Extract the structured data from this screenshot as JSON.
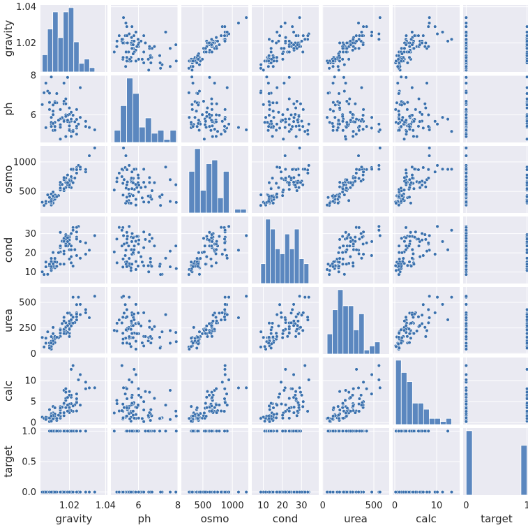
{
  "chart_data": {
    "type": "scatter",
    "kind": "pairplot",
    "grid": true,
    "colors": {
      "panel_bg": "#eaeaf2",
      "grid": "#ffffff",
      "marker": "#3a70ad",
      "hist": "#5b87bf",
      "marker_edge": "#ffffff"
    },
    "variables": [
      "gravity",
      "ph",
      "osmo",
      "cond",
      "urea",
      "calc",
      "target"
    ],
    "tick_labels": {
      "x": {
        "gravity": [
          "1.02",
          "1.04"
        ],
        "ph": [
          "6",
          "8"
        ],
        "osmo": [
          "500",
          "1000"
        ],
        "cond": [
          "10",
          "20",
          "30"
        ],
        "urea": [
          "0",
          "500"
        ],
        "calc": [
          "0",
          "10"
        ],
        "target": [
          "0",
          "1"
        ]
      },
      "y": {
        "gravity": [
          "1.02",
          "1.04"
        ],
        "ph": [
          "6",
          "8"
        ],
        "osmo": [
          "500",
          "1000"
        ],
        "cond": [
          "10",
          "20",
          "30"
        ],
        "urea": [
          "0",
          "250",
          "500"
        ],
        "calc": [
          "0",
          "5",
          "10"
        ],
        "target": [
          "0.0",
          "0.5",
          "1.0"
        ]
      }
    },
    "ticks": {
      "gravity": [
        1.02,
        1.04
      ],
      "ph": [
        6,
        8
      ],
      "osmo": [
        500,
        1000
      ],
      "cond": [
        10,
        20,
        30
      ],
      "urea": [
        0,
        500
      ],
      "calc": [
        0,
        10
      ],
      "target": [
        0,
        1
      ]
    },
    "yticks": {
      "gravity": [
        1.02,
        1.04
      ],
      "ph": [
        6,
        8
      ],
      "osmo": [
        500,
        1000
      ],
      "cond": [
        10,
        20,
        30
      ],
      "urea": [
        0,
        250,
        500
      ],
      "calc": [
        0,
        5,
        10
      ],
      "target": [
        0.0,
        0.5,
        1.0
      ]
    },
    "ranges": {
      "gravity": [
        1.004,
        1.041
      ],
      "ph": [
        4.6,
        8.0
      ],
      "osmo": [
        135,
        1270
      ],
      "cond": [
        4,
        39
      ],
      "urea": [
        -5,
        650
      ],
      "calc": [
        -0.5,
        15.5
      ],
      "target": [
        -0.05,
        1.05
      ]
    },
    "sample_data": {
      "gravity": [
        1.021,
        1.017,
        1.008,
        1.011,
        1.005,
        1.02,
        1.012,
        1.029,
        1.015,
        1.021,
        1.011,
        1.025,
        1.006,
        1.007,
        1.011,
        1.018,
        1.009,
        1.024,
        1.024,
        1.021,
        1.024,
        1.026,
        1.013,
        1.01,
        1.011,
        1.022,
        1.011,
        1.031,
        1.02,
        1.021,
        1.022,
        1.016,
        1.015,
        1.007,
        1.02,
        1.034,
        1.017,
        1.019,
        1.017,
        1.012,
        1.009,
        1.015,
        1.01,
        1.02,
        1.023,
        1.012,
        1.022,
        1.018,
        1.01,
        1.01,
        1.015,
        1.02,
        1.029,
        1.018,
        1.012,
        1.02,
        1.02,
        1.01,
        1.017,
        1.018,
        1.019,
        1.009,
        1.015,
        1.012,
        1.011,
        1.019,
        1.024,
        1.018,
        1.015,
        1.021,
        1.011,
        1.019,
        1.014,
        1.01,
        1.013,
        1.026,
        1.017,
        1.024
      ],
      "ph": [
        4.91,
        5.74,
        7.2,
        5.51,
        6.52,
        5.27,
        5.62,
        5.67,
        5.41,
        6.13,
        6.19,
        5.53,
        7.12,
        5.35,
        5.21,
        4.9,
        6.63,
        6.27,
        5.02,
        5.68,
        5.33,
        5.87,
        6.61,
        5.87,
        6.01,
        5.21,
        5.53,
        5.36,
        5.44,
        5.16,
        5.16,
        5.86,
        6.27,
        7.61,
        5.21,
        5.24,
        7.61,
        7.9,
        6.69,
        5.22,
        6.27,
        5.5,
        5.53,
        5.62,
        5.65,
        6.67,
        5.98,
        6.0,
        5.62,
        7.92,
        5.79,
        6.35,
        5.41,
        6.81,
        6.61,
        5.64,
        6.02,
        5.87,
        6.56,
        6.56,
        5.98,
        7.1,
        4.77,
        5.41,
        6.5,
        5.66,
        5.77,
        5.92,
        5.37,
        5.78,
        5.56,
        5.73,
        5.73,
        5.41,
        7.08,
        7.38,
        5.67,
        5.42
      ],
      "osmo": [
        725,
        721,
        442,
        345,
        317,
        700,
        445,
        830,
        612,
        564,
        391,
        940,
        263,
        302,
        434,
        664,
        394,
        876,
        810,
        674,
        904,
        877,
        426,
        269,
        491,
        864,
        303,
        1104,
        660,
        750,
        876,
        618,
        654,
        331,
        637,
        1236,
        699,
        613,
        513,
        438,
        321,
        537,
        457,
        696,
        727,
        368,
        648,
        727,
        301,
        314,
        534,
        577,
        871,
        648,
        402,
        672,
        608,
        366,
        734,
        651,
        778,
        398,
        524,
        403,
        422,
        657,
        878,
        566,
        556,
        874,
        422,
        646,
        429,
        333,
        412,
        912,
        546,
        868
      ],
      "cond": [
        14.8,
        19.5,
        8.8,
        14.5,
        10.1,
        24.6,
        12.2,
        19.3,
        30.7,
        18.0,
        15.2,
        33.8,
        8.7,
        15.2,
        12.6,
        27.2,
        13.4,
        30.9,
        33.3,
        30.1,
        18.6,
        25.9,
        15.1,
        11.3,
        20.2,
        33.2,
        13.4,
        21.4,
        28.7,
        23.6,
        31.8,
        26.1,
        22.7,
        12.7,
        16.8,
        29.0,
        20.9,
        23.6,
        27.6,
        16.8,
        13.3,
        23.6,
        17.1,
        21.6,
        21.7,
        13.0,
        13.1,
        24.6,
        10.8,
        11.8,
        23.6,
        27.0,
        25.2,
        23.6,
        17.1,
        28.2,
        26.7,
        15.5,
        26.0,
        29.5,
        28.6,
        14.1,
        20.5,
        15.3,
        13.3,
        25.9,
        28.2,
        28.6,
        14.1,
        21.6,
        14.3,
        27.9,
        20.1,
        12.8,
        13.0,
        17.2,
        14.1,
        27.2
      ],
      "urea": [
        296,
        354,
        212,
        255,
        157,
        395,
        155,
        398,
        225,
        270,
        104,
        550,
        64,
        150,
        101,
        220,
        103,
        398,
        328,
        375,
        478,
        480,
        162,
        43,
        194,
        355,
        150,
        350,
        246,
        299,
        550,
        293,
        167,
        101,
        198,
        560,
        224,
        206,
        236,
        141,
        74,
        240,
        165,
        236,
        302,
        147,
        297,
        300,
        68,
        116,
        200,
        166,
        429,
        263,
        166,
        317,
        292,
        120,
        318,
        256,
        395,
        53,
        226,
        107,
        123,
        273,
        386,
        194,
        232,
        330,
        95,
        273,
        155,
        102,
        159,
        380,
        196,
        359
      ],
      "calc": [
        4.49,
        4.41,
        1.11,
        2.28,
        1.27,
        3.56,
        1.21,
        9.62,
        3.78,
        6.03,
        0.94,
        10.18,
        0.98,
        1.23,
        0.84,
        5.28,
        3.06,
        4.97,
        2.74,
        6.52,
        6.8,
        11.42,
        0.49,
        0.96,
        1.04,
        2.67,
        3.82,
        8.26,
        3.04,
        2.82,
        13.58,
        3.65,
        2.98,
        0.71,
        4.38,
        8.28,
        7.67,
        2.71,
        1.62,
        1.11,
        0.21,
        3.41,
        2.13,
        2.65,
        4.21,
        1.6,
        3.94,
        8.06,
        0.32,
        1.53,
        1.02,
        7.39,
        8.04,
        5.76,
        2.03,
        2.35,
        6.52,
        1.89,
        2.32,
        7.22,
        4.17,
        1.06,
        2.26,
        3.5,
        1.65,
        5.97,
        4.73,
        3.54,
        1.49,
        12.68,
        0.86,
        2.7,
        1.73,
        1.53,
        0.95,
        4.14,
        4.57,
        5.66
      ],
      "target": [
        0,
        0,
        0,
        0,
        0,
        0,
        0,
        0,
        0,
        0,
        0,
        0,
        0,
        0,
        0,
        0,
        0,
        0,
        0,
        0,
        0,
        0,
        0,
        0,
        0,
        0,
        0,
        0,
        0,
        0,
        0,
        0,
        0,
        0,
        0,
        0,
        0,
        0,
        0,
        0,
        0,
        0,
        0,
        0,
        1,
        1,
        1,
        1,
        1,
        1,
        1,
        1,
        1,
        1,
        1,
        1,
        1,
        1,
        1,
        1,
        1,
        1,
        1,
        1,
        1,
        1,
        1,
        1,
        1,
        1,
        1,
        1,
        1,
        1,
        1,
        1,
        1,
        1
      ]
    }
  }
}
